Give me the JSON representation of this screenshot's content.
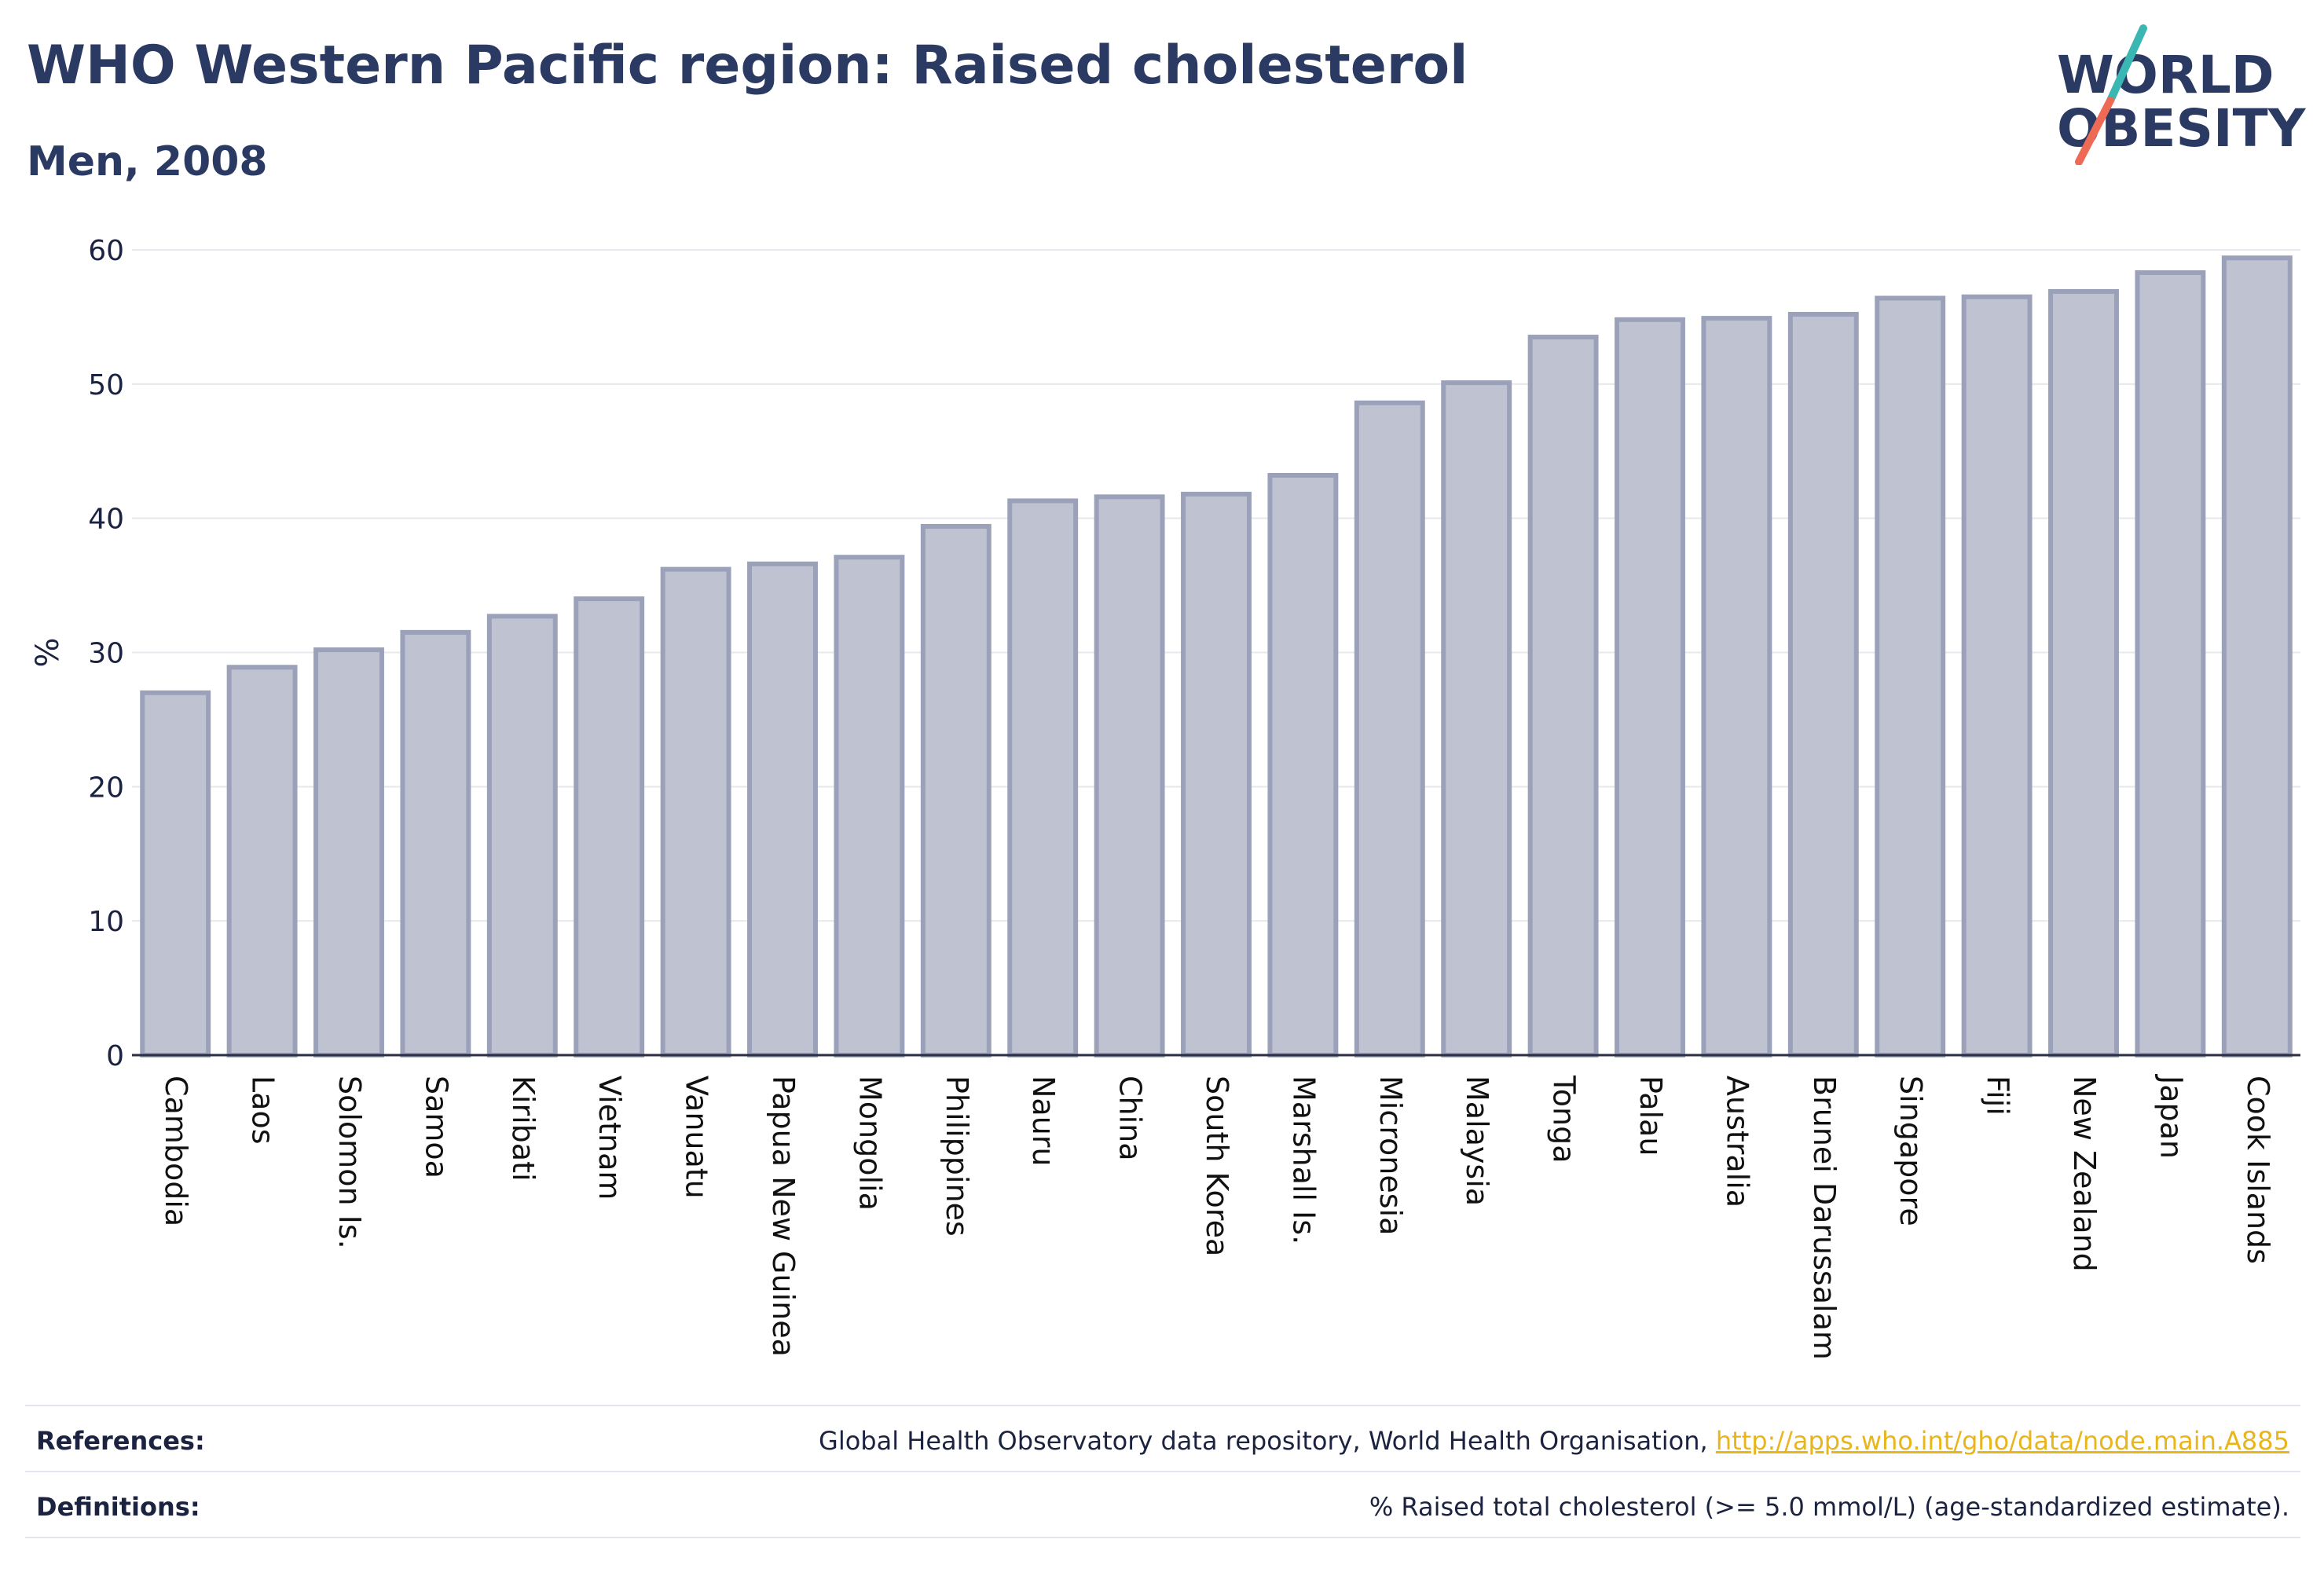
{
  "header": {
    "title": "WHO Western Pacific region: Raised cholesterol",
    "subtitle": "Men, 2008"
  },
  "logo": {
    "line1": "WORLD",
    "line2": "OBESITY",
    "colors": {
      "text": "#2b3a62",
      "slash_top": "#3bb7b3",
      "slash_bottom": "#ef6a55"
    }
  },
  "chart_data": {
    "type": "bar",
    "title": "WHO Western Pacific region: Raised cholesterol",
    "subtitle": "Men, 2008",
    "xlabel": "",
    "ylabel": "%",
    "ylim": [
      0,
      60
    ],
    "yticks": [
      0,
      10,
      20,
      30,
      40,
      50,
      60
    ],
    "grid": true,
    "bar_fill": "#bfc3d1",
    "bar_stroke": "#9aa1b8",
    "categories": [
      "Cambodia",
      "Laos",
      "Solomon Is.",
      "Samoa",
      "Kiribati",
      "Vietnam",
      "Vanuatu",
      "Papua New Guinea",
      "Mongolia",
      "Philippines",
      "Nauru",
      "China",
      "South Korea",
      "Marshall Is.",
      "Micronesia",
      "Malaysia",
      "Tonga",
      "Palau",
      "Australia",
      "Brunei Darussalam",
      "Singapore",
      "Fiji",
      "New Zealand",
      "Japan",
      "Cook Islands"
    ],
    "values": [
      27.0,
      28.9,
      30.2,
      31.5,
      32.7,
      34.0,
      36.2,
      36.6,
      37.1,
      39.4,
      41.3,
      41.6,
      41.8,
      43.2,
      48.6,
      50.1,
      53.5,
      54.8,
      54.9,
      55.2,
      56.4,
      56.5,
      56.9,
      58.3,
      59.4
    ]
  },
  "footer": {
    "references_label": "References:",
    "references_text": "Global Health Observatory data repository, World Health Organisation, ",
    "references_link": "http://apps.who.int/gho/data/node.main.A885",
    "definitions_label": "Definitions:",
    "definitions_text": "% Raised total cholesterol (>= 5.0 mmol/L) (age-standardized estimate)."
  }
}
